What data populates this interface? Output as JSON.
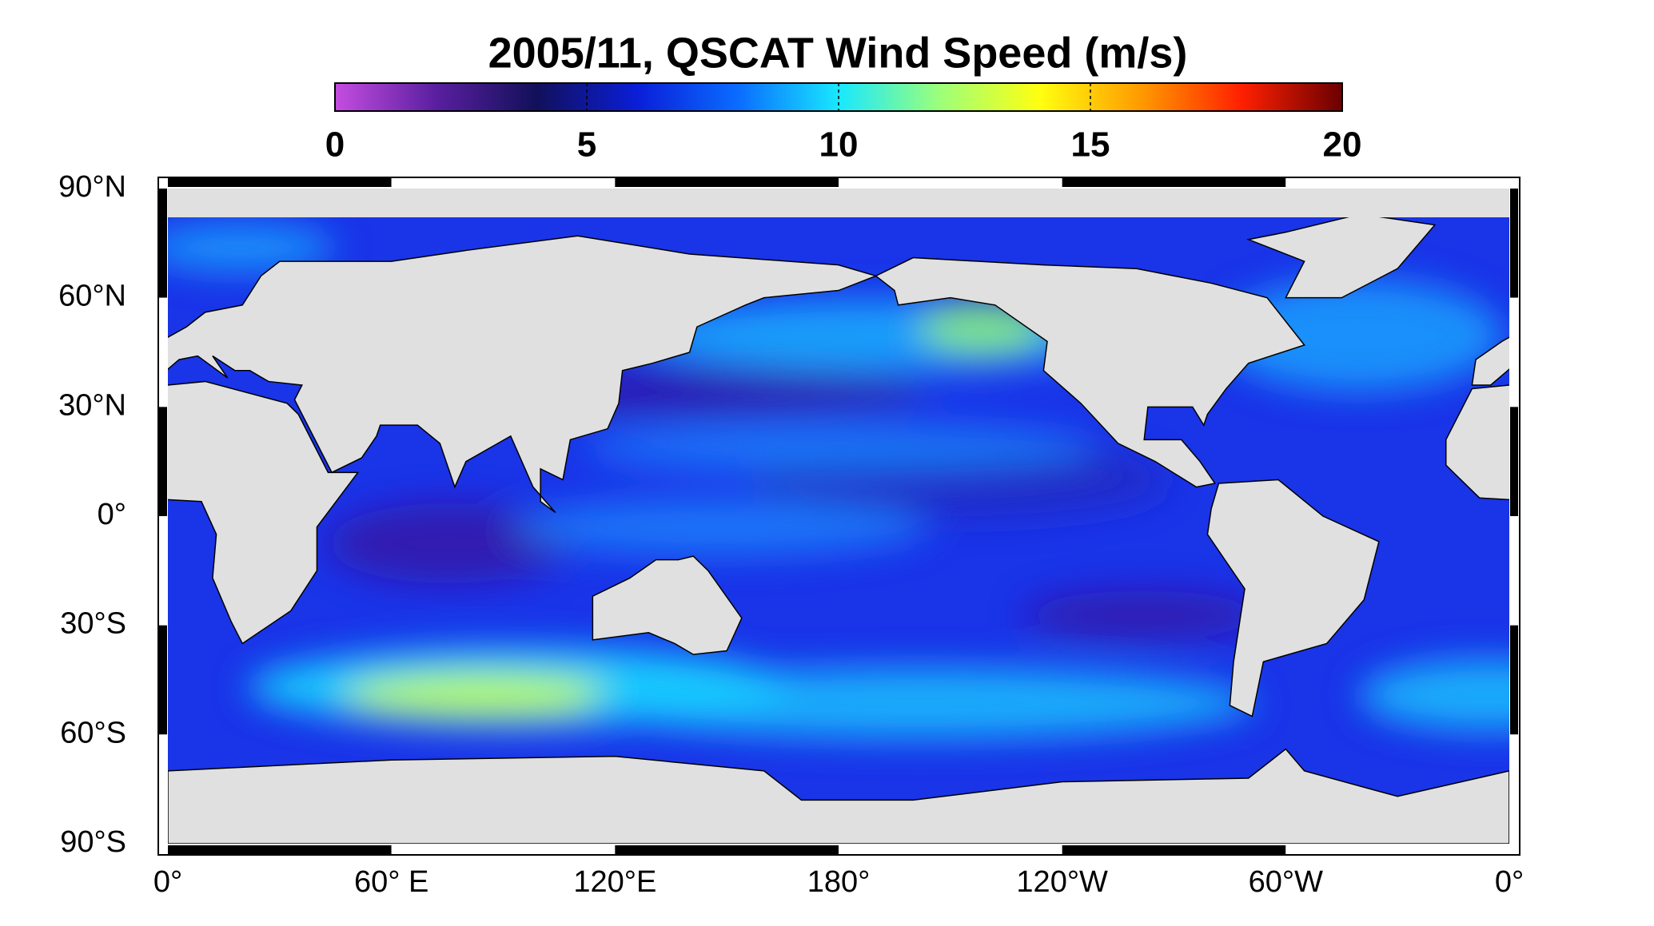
{
  "map": {
    "title": "2005/11,  QSCAT Wind Speed (m/s)",
    "colorbar": {
      "lim": [
        0,
        20
      ],
      "ticks": [
        0,
        5,
        10,
        15,
        20
      ],
      "colors": [
        "#c44de0",
        "#5a1fa0",
        "#12105a",
        "#0a1ed8",
        "#0a6cff",
        "#18e8ff",
        "#9cff7a",
        "#ffff10",
        "#ff9a00",
        "#ff2000",
        "#6a0000"
      ]
    },
    "lat_labels": [
      "90°N",
      "60°N",
      "30°N",
      "0°",
      "30°S",
      "60°S",
      "90°S"
    ],
    "lon_labels": [
      "0°",
      "60° E",
      "120°E",
      "180°",
      "120°W",
      "60°W",
      "0°"
    ]
  }
}
